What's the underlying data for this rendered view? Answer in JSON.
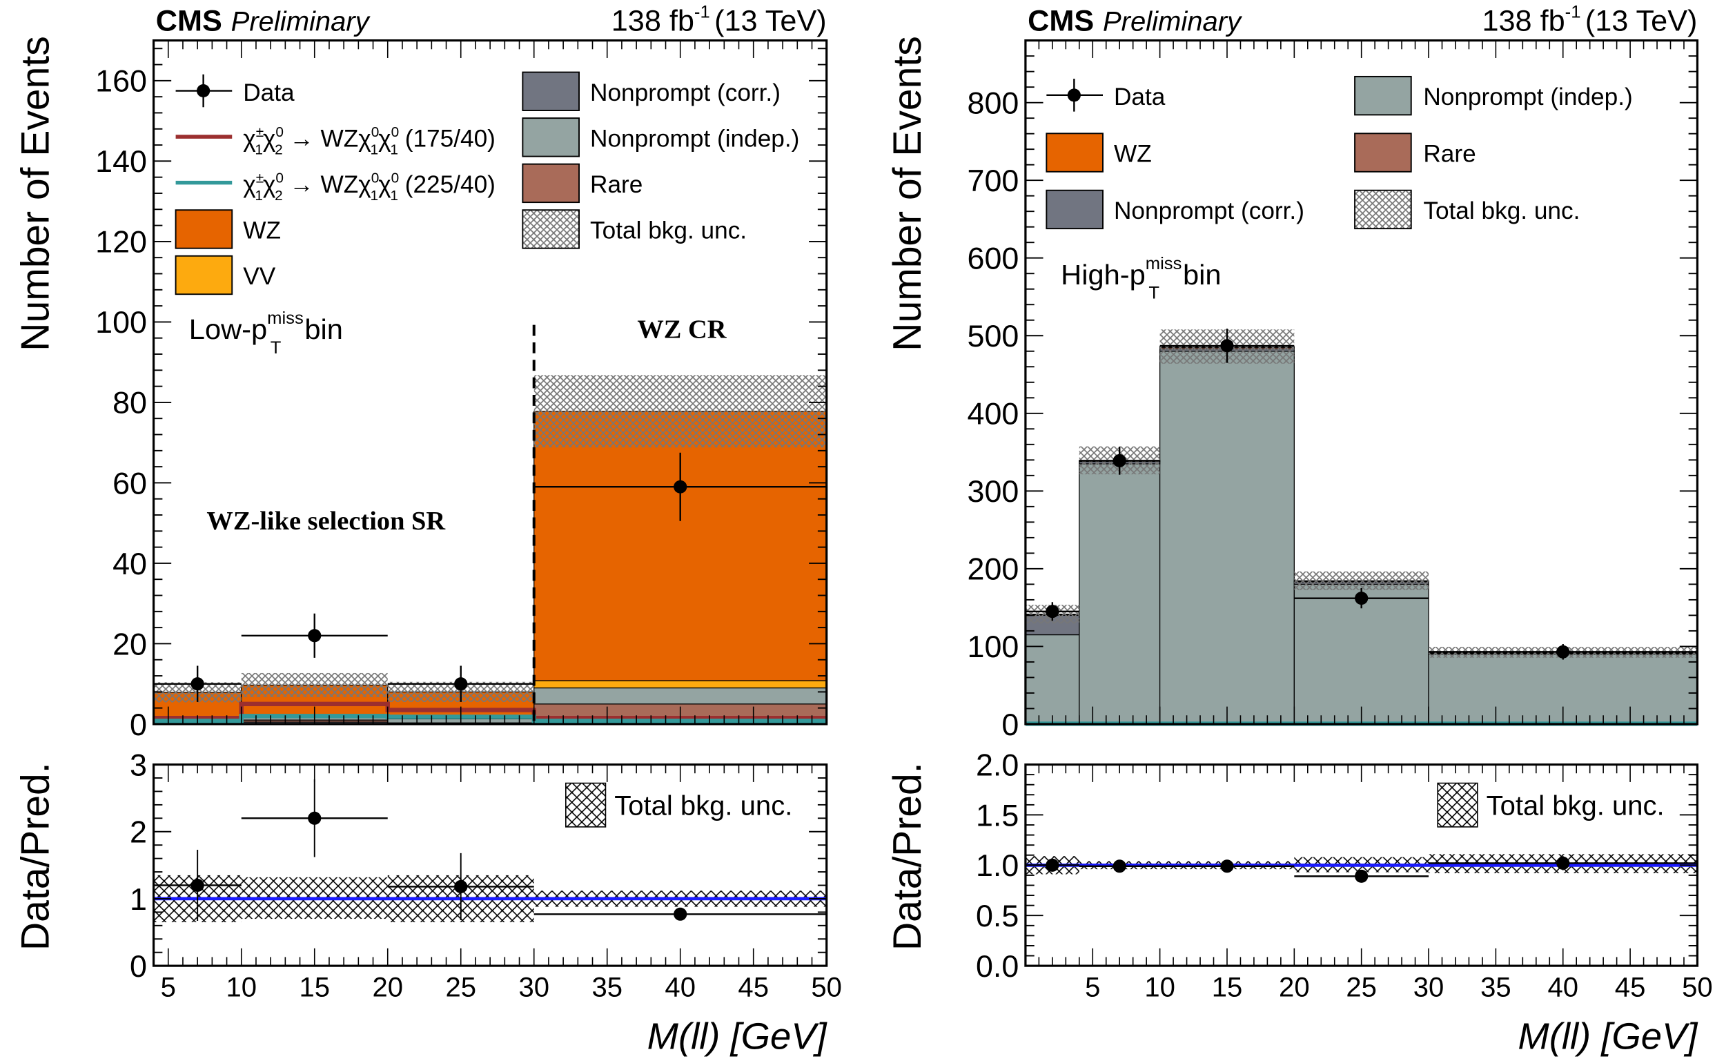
{
  "colors": {
    "data": "#000000",
    "signal_175_40": "#9b2f2f",
    "signal_225_40": "#33999a",
    "wz": "#e66400",
    "vv": "#fdaa0f",
    "nonprompt_corr": "#717581",
    "nonprompt_indep": "#94a4a2",
    "rare": "#a96b59",
    "unc_hatch": "#777777",
    "ratio_line": "#1a1aff"
  },
  "chart_data": [
    {
      "id": "left-main",
      "type": "bar",
      "stacked": true,
      "experiment": "CMS",
      "status": "Preliminary",
      "lumi": "138 fb",
      "lumi_sup": "-1",
      "energy": "(13 TeV)",
      "region_label_main": "Low-p",
      "region_label_sub": "T",
      "region_label_sup": "miss",
      "region_label_end": " bin",
      "annotations": [
        "WZ-like selection SR",
        "WZ CR"
      ],
      "divider_x": 30,
      "xlabel": "M(ll) [GeV]",
      "ylabel": "Number of Events",
      "xlim": [
        4,
        50
      ],
      "ylim": [
        0,
        170
      ],
      "yticks": [
        0,
        20,
        40,
        60,
        80,
        100,
        120,
        140,
        160
      ],
      "bin_edges": [
        4,
        10,
        20,
        30,
        50
      ],
      "stack_order_bottom_to_top": [
        "Nonprompt (corr.)",
        "Rare",
        "Nonprompt (indep.)",
        "VV",
        "WZ"
      ],
      "series": [
        {
          "name": "Nonprompt (corr.)",
          "key": "nonprompt_corr",
          "values": [
            0.0,
            0.5,
            0.0,
            0.0
          ]
        },
        {
          "name": "Rare",
          "key": "rare",
          "values": [
            0.3,
            0.5,
            0.3,
            5.0
          ]
        },
        {
          "name": "Nonprompt (indep.)",
          "key": "nonprompt_indep",
          "values": [
            0.0,
            1.0,
            1.0,
            4.0
          ]
        },
        {
          "name": "VV",
          "key": "vv",
          "values": [
            0.1,
            0.2,
            0.2,
            1.8
          ]
        },
        {
          "name": "WZ",
          "key": "wz",
          "values": [
            7.5,
            7.5,
            6.5,
            67.0
          ]
        }
      ],
      "total_unc": [
        2.5,
        3.0,
        2.5,
        9.0
      ],
      "signals": [
        {
          "name": "χ±1χ02 → WZχ01χ01 (175/40)",
          "key": "signal_175_40",
          "values": [
            1.5,
            5.0,
            3.5,
            1.5
          ]
        },
        {
          "name": "χ±1χ02 → WZχ01χ01 (225/40)",
          "key": "signal_225_40",
          "values": [
            0.8,
            2.0,
            1.8,
            0.8
          ]
        }
      ],
      "data": {
        "x": [
          7,
          15,
          25,
          40
        ],
        "y": [
          10,
          22,
          10,
          59
        ],
        "xerr": [
          3,
          5,
          5,
          10
        ],
        "yerr": [
          4.5,
          5.5,
          4.5,
          8.5
        ]
      },
      "legend": [
        {
          "label": "Data",
          "kind": "marker"
        },
        {
          "label": "χ",
          "sup1": "±",
          "sub1": "1",
          "mid": "χ",
          "sup2": "0",
          "sub2": "2",
          "arrow": " → WZχ",
          "sup3": "0",
          "sub3": "1",
          "mid2": "χ",
          "sup4": "0",
          "sub4": "1",
          "tail": " (175/40)",
          "kind": "line",
          "key": "signal_175_40"
        },
        {
          "label": "χ",
          "sup1": "±",
          "sub1": "1",
          "mid": "χ",
          "sup2": "0",
          "sub2": "2",
          "arrow": " → WZχ",
          "sup3": "0",
          "sub3": "1",
          "mid2": "χ",
          "sup4": "0",
          "sub4": "1",
          "tail": " (225/40)",
          "kind": "line",
          "key": "signal_225_40"
        },
        {
          "label": "WZ",
          "kind": "box",
          "key": "wz"
        },
        {
          "label": "VV",
          "kind": "box",
          "key": "vv"
        },
        {
          "label": "Nonprompt (corr.)",
          "kind": "box",
          "key": "nonprompt_corr"
        },
        {
          "label": "Nonprompt (indep.)",
          "kind": "box",
          "key": "nonprompt_indep"
        },
        {
          "label": "Rare",
          "kind": "box",
          "key": "rare"
        },
        {
          "label": "Total bkg. unc.",
          "kind": "hatch"
        }
      ],
      "legend_position": "top"
    },
    {
      "id": "left-ratio",
      "type": "scatter",
      "ylabel": "Data/Pred.",
      "xlabel": "M(ll) [GeV]",
      "xlim": [
        4,
        50
      ],
      "ylim": [
        0,
        3
      ],
      "yticks": [
        0,
        1,
        2,
        3
      ],
      "ytick_labels": [
        "0",
        "1",
        "2",
        "3"
      ],
      "xticks": [
        5,
        10,
        15,
        20,
        25,
        30,
        35,
        40,
        45,
        50
      ],
      "bin_edges": [
        4,
        10,
        20,
        30,
        50
      ],
      "unc_band": [
        [
          0.65,
          1.35
        ],
        [
          0.7,
          1.32
        ],
        [
          0.65,
          1.35
        ],
        [
          0.88,
          1.12
        ]
      ],
      "data": {
        "x": [
          7,
          15,
          25,
          40
        ],
        "y": [
          1.2,
          2.2,
          1.18,
          0.77
        ],
        "xerr": [
          3,
          5,
          5,
          10
        ],
        "yerr_up": [
          0.53,
          0.58,
          0.5,
          0.0
        ],
        "yerr_down": [
          0.53,
          0.58,
          0.5,
          0.0
        ]
      },
      "reference": 1.0,
      "legend": [
        {
          "label": "Total bkg. unc.",
          "kind": "hatch"
        }
      ],
      "legend_position": "top-right"
    },
    {
      "id": "right-main",
      "type": "bar",
      "stacked": true,
      "experiment": "CMS",
      "status": "Preliminary",
      "lumi": "138 fb",
      "lumi_sup": "-1",
      "energy": "(13 TeV)",
      "region_label_main": "High-p",
      "region_label_sub": "T",
      "region_label_sup": "miss",
      "region_label_end": " bin",
      "xlabel": "M(ll) [GeV]",
      "ylabel": "Number of Events",
      "xlim": [
        0,
        50
      ],
      "ylim": [
        0,
        880
      ],
      "yticks": [
        0,
        100,
        200,
        300,
        400,
        500,
        600,
        700,
        800
      ],
      "bin_edges": [
        0,
        4,
        10,
        20,
        30,
        50
      ],
      "stack_order_bottom_to_top": [
        "Nonprompt (indep.)",
        "Nonprompt (corr.)",
        "Rare",
        "WZ"
      ],
      "series": [
        {
          "name": "Nonprompt (indep.)",
          "key": "nonprompt_indep",
          "values": [
            115,
            335,
            480,
            180,
            90
          ]
        },
        {
          "name": "Nonprompt (corr.)",
          "key": "nonprompt_corr",
          "values": [
            25,
            3,
            3,
            3,
            1
          ]
        },
        {
          "name": "Rare",
          "key": "rare",
          "values": [
            1,
            1,
            2,
            1,
            1
          ]
        },
        {
          "name": "WZ",
          "key": "wz",
          "values": [
            0.5,
            0.5,
            1,
            0.5,
            0.5
          ]
        }
      ],
      "total_unc": [
        12,
        18,
        22,
        12,
        7
      ],
      "signals": [
        {
          "name": "signal (225/40)",
          "key": "signal_225_40",
          "values": [
            0.5,
            0.5,
            0.5,
            0.5,
            0.5
          ]
        }
      ],
      "data": {
        "x": [
          2,
          7,
          15,
          25,
          40
        ],
        "y": [
          145,
          339,
          487,
          162,
          93
        ],
        "xerr": [
          2,
          3,
          5,
          5,
          10
        ],
        "yerr": [
          12,
          18,
          22,
          13,
          10
        ]
      },
      "legend": [
        {
          "label": "Data",
          "kind": "marker"
        },
        {
          "label": "WZ",
          "kind": "box",
          "key": "wz"
        },
        {
          "label": "Nonprompt (corr.)",
          "kind": "box",
          "key": "nonprompt_corr"
        },
        {
          "label": "Nonprompt (indep.)",
          "kind": "box",
          "key": "nonprompt_indep"
        },
        {
          "label": "Rare",
          "kind": "box",
          "key": "rare"
        },
        {
          "label": "Total bkg. unc.",
          "kind": "hatch"
        }
      ],
      "legend_position": "top"
    },
    {
      "id": "right-ratio",
      "type": "scatter",
      "ylabel": "Data/Pred.",
      "xlabel": "M(ll) [GeV]",
      "xlim": [
        0,
        50
      ],
      "ylim": [
        0,
        2
      ],
      "yticks": [
        0,
        0.5,
        1,
        1.5,
        2
      ],
      "ytick_labels": [
        "0.0",
        "0.5",
        "1.0",
        "1.5",
        "2.0"
      ],
      "xticks": [
        5,
        10,
        15,
        20,
        25,
        30,
        35,
        40,
        45,
        50
      ],
      "bin_edges": [
        0,
        4,
        10,
        20,
        30,
        50
      ],
      "unc_band": [
        [
          0.91,
          1.09
        ],
        [
          0.96,
          1.04
        ],
        [
          0.96,
          1.04
        ],
        [
          0.93,
          1.08
        ],
        [
          0.92,
          1.11
        ]
      ],
      "data": {
        "x": [
          2,
          7,
          15,
          25,
          40
        ],
        "y": [
          1.0,
          0.99,
          0.99,
          0.89,
          1.02
        ],
        "xerr": [
          2,
          3,
          5,
          5,
          10
        ],
        "yerr_up": [
          0.06,
          0.04,
          0.04,
          0.06,
          0.07
        ],
        "yerr_down": [
          0.06,
          0.04,
          0.04,
          0.06,
          0.07
        ]
      },
      "reference": 1.0,
      "legend": [
        {
          "label": "Total bkg. unc.",
          "kind": "hatch"
        }
      ],
      "legend_position": "top-right"
    }
  ]
}
